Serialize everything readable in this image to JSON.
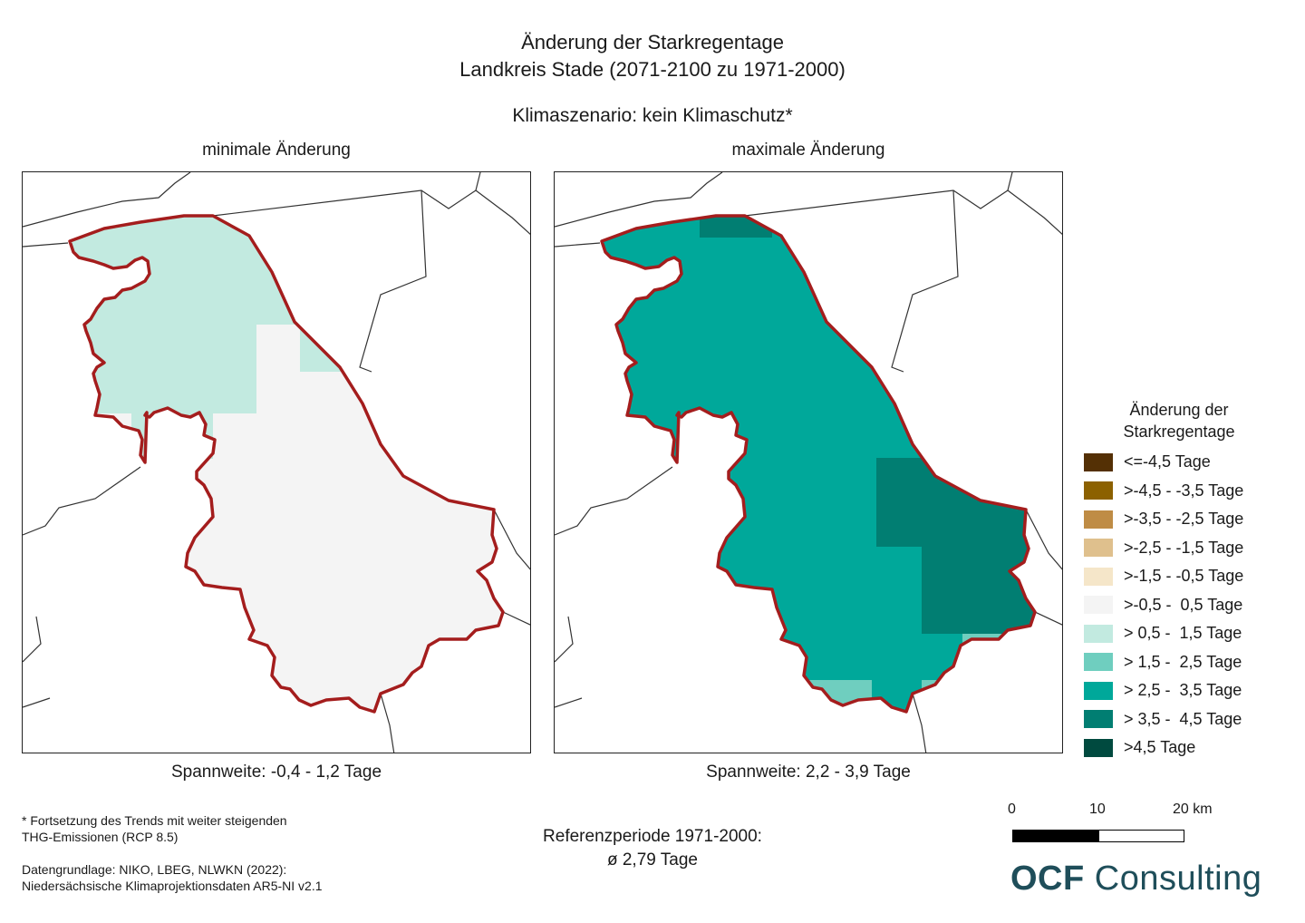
{
  "title": {
    "line1": "Änderung der Starkregentage",
    "line2": "Landkreis Stade (2071-2100 zu 1971-2000)",
    "scenario": "Klimaszenario: kein Klimaschutz*"
  },
  "maps": [
    {
      "title": "minimale Änderung",
      "caption": "Spannweite: -0,4 - 1,2 Tage",
      "base_class": ">-0,5 -  0,5 Tage"
    },
    {
      "title": "maximale Änderung",
      "caption": "Spannweite: 2,2 - 3,9 Tage",
      "base_class": "> 2,5 -  3,5 Tage"
    }
  ],
  "legend": {
    "title_line1": "Änderung der",
    "title_line2": "Starkregentage",
    "items": [
      {
        "label": "<=-4,5 Tage",
        "color": "#543005"
      },
      {
        "label": ">-4,5 - -3,5 Tage",
        "color": "#8c6100"
      },
      {
        "label": ">-3,5 - -2,5 Tage",
        "color": "#bf8c45"
      },
      {
        "label": ">-2,5 - -1,5 Tage",
        "color": "#dfc08d"
      },
      {
        "label": ">-1,5 - -0,5 Tage",
        "color": "#f5e6c9"
      },
      {
        "label": ">-0,5 -  0,5 Tage",
        "color": "#f4f4f4"
      },
      {
        "label": "> 0,5 -  1,5 Tage",
        "color": "#c2eae0"
      },
      {
        "label": "> 1,5 -  2,5 Tage",
        "color": "#6fcebf"
      },
      {
        "label": "> 2,5 -  3,5 Tage",
        "color": "#00a89a"
      },
      {
        "label": "> 3,5 -  4,5 Tage",
        "color": "#017e72"
      },
      {
        "label": ">4,5 Tage",
        "color": "#004a3f"
      }
    ]
  },
  "footnote": {
    "line1": "* Fortsetzung des Trends mit weiter steigenden",
    "line2": "THG-Emissionen (RCP 8.5)"
  },
  "source": {
    "line1": "Datengrundlage: NIKO, LBEG, NLWKN (2022):",
    "line2": "Niedersächsische Klimaprojektionsdaten AR5-NI v2.1"
  },
  "reference": {
    "line1": "Referenzperiode 1971-2000:",
    "line2": "ø 2,79 Tage"
  },
  "scalebar": {
    "label_0": "0",
    "label_10": "10",
    "label_20": "20 km"
  },
  "logo": {
    "bold": "OCF",
    "regular": "Consulting"
  },
  "colors": {
    "boundary": "#a41d1d",
    "neighbor_lines": "#333333"
  }
}
